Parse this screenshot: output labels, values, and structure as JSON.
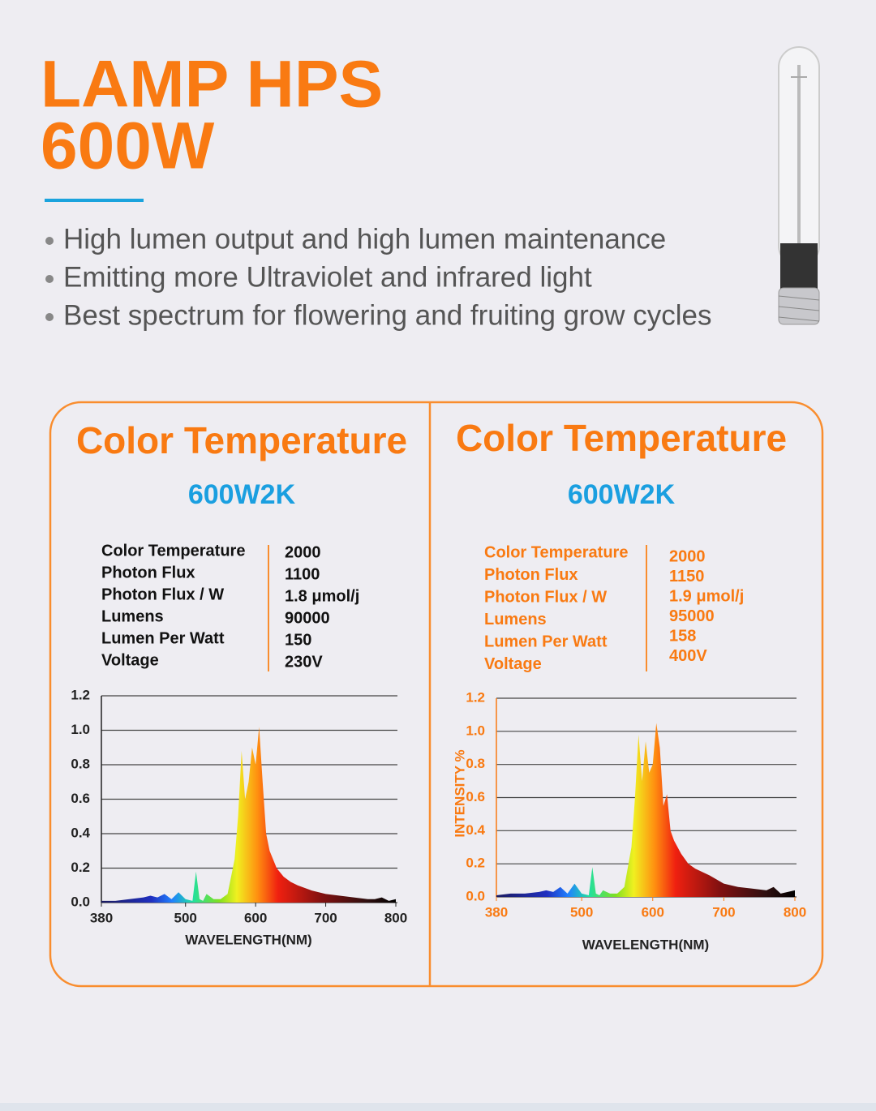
{
  "header": {
    "title_lines": [
      "LAMP HPS",
      "600W"
    ]
  },
  "bullets": [
    "High lumen output and high lumen maintenance",
    "Emitting more Ultraviolet and infrared light",
    "Best spectrum for flowering and fruiting grow cycles"
  ],
  "panels": [
    {
      "title": "Color Temperature",
      "model": "600W2K",
      "specs": [
        {
          "label": "Color Temperature",
          "value": 2000
        },
        {
          "label": "Photon Flux",
          "value": 1100
        },
        {
          "label": "Photon Flux / W",
          "value": "1.8 μmol/j"
        },
        {
          "label": "Lumens",
          "value": 90000
        },
        {
          "label": "Lumen Per Watt",
          "value": 150
        },
        {
          "label": "Voltage",
          "value": "230V"
        }
      ],
      "chart": {
        "type": "area",
        "x_label": "WAVELENGTH(NM)",
        "xlim": [
          380,
          800
        ],
        "xticks": [
          380,
          500,
          600,
          700,
          800
        ],
        "ylim": [
          0,
          1.2
        ],
        "yticks": [
          {
            "value": 0,
            "label": "0.0"
          },
          0.2,
          0.4,
          0.6,
          0.8,
          {
            "value": 1,
            "label": "1.0"
          },
          1.2
        ],
        "grid": true,
        "x": [
          380,
          400,
          420,
          440,
          450,
          460,
          470,
          480,
          490,
          500,
          510,
          515,
          520,
          525,
          530,
          540,
          550,
          560,
          570,
          575,
          580,
          585,
          590,
          595,
          600,
          605,
          610,
          615,
          620,
          625,
          630,
          640,
          650,
          660,
          680,
          700,
          720,
          740,
          760,
          770,
          780,
          790,
          800
        ],
        "values": [
          0.01,
          0.01,
          0.02,
          0.03,
          0.04,
          0.03,
          0.05,
          0.02,
          0.06,
          0.02,
          0.01,
          0.18,
          0.02,
          0.01,
          0.05,
          0.02,
          0.02,
          0.05,
          0.25,
          0.5,
          0.88,
          0.6,
          0.7,
          0.9,
          0.8,
          1.02,
          0.7,
          0.4,
          0.3,
          0.25,
          0.2,
          0.15,
          0.12,
          0.1,
          0.07,
          0.05,
          0.04,
          0.03,
          0.02,
          0.02,
          0.03,
          0.01,
          0.02
        ]
      }
    },
    {
      "title": "Color Temperature",
      "model": "600W2K",
      "specs": [
        {
          "label": "Color Temperature",
          "value": 2000
        },
        {
          "label": "Photon Flux",
          "value": 1150
        },
        {
          "label": "Photon Flux / W",
          "value": "1.9 μmol/j"
        },
        {
          "label": "Lumens",
          "value": 95000
        },
        {
          "label": "Lumen Per Watt",
          "value": 158
        },
        {
          "label": "Voltage",
          "value": "400V"
        }
      ],
      "chart": {
        "type": "area",
        "x_label": "WAVELENGTH(NM)",
        "y_label": "INTENSITY %",
        "xlim": [
          380,
          800
        ],
        "xticks": [
          380,
          500,
          600,
          700,
          800
        ],
        "ylim": [
          0,
          1.2
        ],
        "yticks": [
          {
            "value": 0,
            "label": "0.0"
          },
          0.2,
          0.4,
          0.6,
          0.8,
          {
            "value": 1,
            "label": "1.0"
          },
          1.2
        ],
        "grid": true,
        "x": [
          380,
          400,
          420,
          440,
          450,
          460,
          470,
          480,
          490,
          500,
          510,
          515,
          520,
          525,
          530,
          540,
          550,
          560,
          570,
          575,
          580,
          585,
          590,
          595,
          600,
          605,
          610,
          615,
          620,
          625,
          630,
          640,
          650,
          660,
          680,
          700,
          720,
          740,
          760,
          770,
          780,
          790,
          800
        ],
        "values": [
          0.01,
          0.02,
          0.02,
          0.03,
          0.04,
          0.03,
          0.06,
          0.02,
          0.08,
          0.02,
          0.01,
          0.18,
          0.02,
          0.01,
          0.04,
          0.02,
          0.02,
          0.06,
          0.3,
          0.6,
          0.98,
          0.7,
          0.94,
          0.75,
          0.8,
          1.05,
          0.9,
          0.55,
          0.62,
          0.4,
          0.34,
          0.26,
          0.2,
          0.17,
          0.13,
          0.08,
          0.06,
          0.05,
          0.04,
          0.06,
          0.02,
          0.03,
          0.04
        ]
      }
    }
  ]
}
